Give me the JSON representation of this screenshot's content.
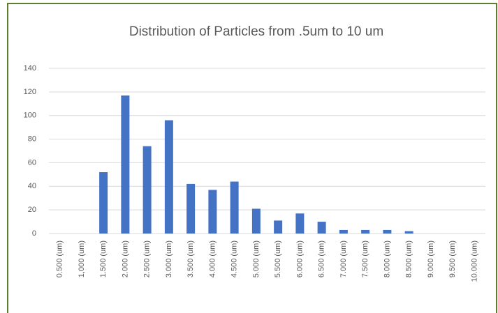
{
  "chart_data": {
    "type": "bar",
    "title": "Distribution of Particles from .5um to 10 um",
    "categories": [
      "0.500 (um)",
      "1,000 (um)",
      "1.500 (um)",
      "2.000 (um)",
      "2.500 (um)",
      "3.000 (um)",
      "3.500 (um)",
      "4.000 (um)",
      "4.500 (um)",
      "5.000 (um)",
      "5.500 (um)",
      "6.000 (um)",
      "6.500 (um)",
      "7.000 (um)",
      "7.500 (um)",
      "8.000 (um)",
      "8.500 (um)",
      "9.000 (um)",
      "9.500 (um)",
      "10.000 (um)"
    ],
    "values": [
      0,
      0,
      52,
      117,
      74,
      96,
      42,
      37,
      44,
      21,
      11,
      17,
      10,
      3,
      3,
      3,
      2,
      0,
      0,
      0
    ],
    "color": "#4472c4",
    "ylim": [
      0,
      140
    ],
    "yticks": [
      0,
      20,
      40,
      60,
      80,
      100,
      120,
      140
    ],
    "grid": true
  }
}
